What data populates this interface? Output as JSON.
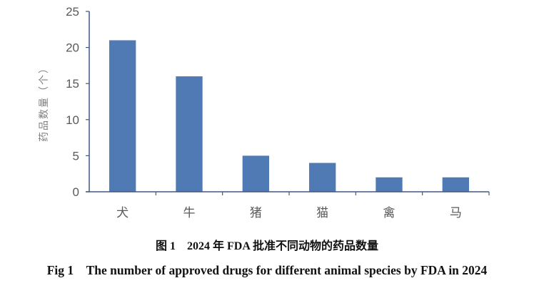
{
  "chart_data": {
    "type": "bar",
    "title": "",
    "xlabel": "",
    "ylabel": "药品数量（个）",
    "categories": [
      "犬",
      "牛",
      "猪",
      "猫",
      "禽",
      "马"
    ],
    "values": [
      21,
      16,
      5,
      4,
      2,
      2
    ],
    "ylim": [
      0,
      25
    ],
    "yticks": [
      0,
      5,
      10,
      15,
      20,
      25
    ],
    "grid": false,
    "legend": "none",
    "bar_color": "#4f7ab3",
    "axis_color": "#3d5a80"
  },
  "captions": {
    "chinese": "图 1　2024 年 FDA 批准不同动物的药品数量",
    "english": "Fig 1　The number of approved drugs for different animal species by FDA in 2024"
  }
}
